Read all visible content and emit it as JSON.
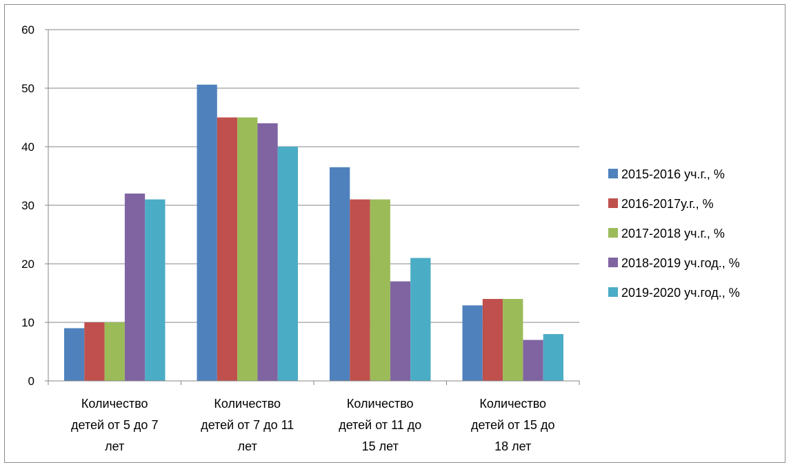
{
  "chart_data": {
    "type": "bar",
    "categories": [
      [
        "Количество",
        "детей от 5 до 7",
        "лет"
      ],
      [
        "Количество",
        "детей от 7 до 11",
        "лет"
      ],
      [
        "Количество",
        "детей от 11 до",
        "15 лет"
      ],
      [
        "Количество",
        "детей от 15 до",
        "18 лет"
      ]
    ],
    "series": [
      {
        "name": "2015-2016 уч.г., %",
        "color": "#4f81bd",
        "values": [
          9,
          50.6,
          36.5,
          12.9
        ]
      },
      {
        "name": "2016-2017у.г., %",
        "color": "#c0504d",
        "values": [
          10,
          45,
          31,
          14
        ]
      },
      {
        "name": "2017-2018 уч.г., %",
        "color": "#9bbb59",
        "values": [
          10,
          45,
          31,
          14
        ]
      },
      {
        "name": "2018-2019 уч.год., %",
        "color": "#8064a2",
        "values": [
          32,
          44,
          17,
          7
        ]
      },
      {
        "name": "2019-2020 уч.год., %",
        "color": "#4bacc6",
        "values": [
          31,
          40,
          21,
          8
        ]
      }
    ],
    "ylim": [
      0,
      60
    ],
    "yticks": [
      0,
      10,
      20,
      30,
      40,
      50,
      60
    ],
    "grid": true,
    "legend_position": "right",
    "title": "",
    "xlabel": "",
    "ylabel": ""
  }
}
